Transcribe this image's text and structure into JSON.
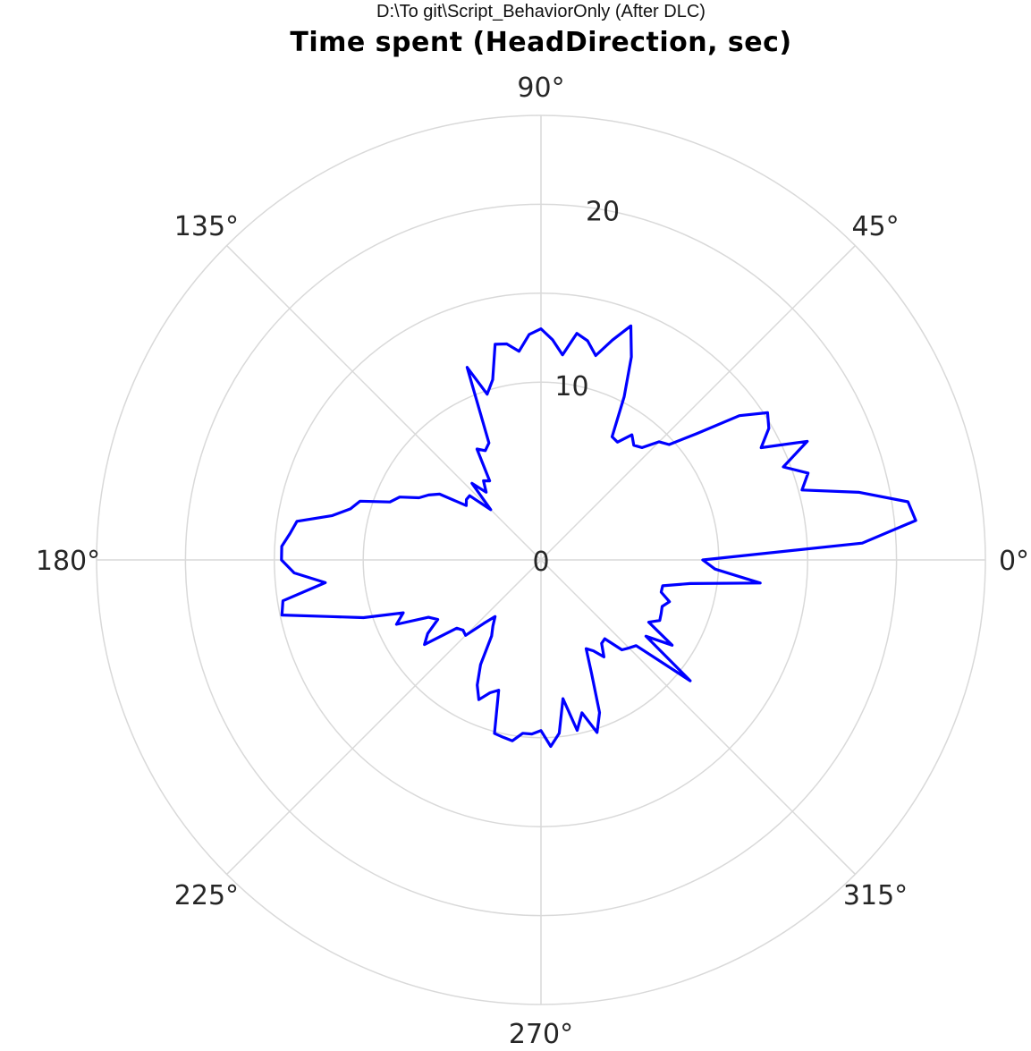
{
  "header": {
    "subtitle": "D:\\To git\\Script_BehaviorOnly (After DLC)",
    "title": "Time spent (HeadDirection, sec)"
  },
  "chart_data": {
    "type": "polar-line",
    "title": "Time spent (HeadDirection, sec)",
    "subtitle": "D:\\To git\\Script_BehaviorOnly (After DLC)",
    "theta_unit": "degrees",
    "theta_ticks": [
      0,
      45,
      90,
      135,
      180,
      225,
      270,
      315
    ],
    "theta_tick_labels": [
      "0°",
      "45°",
      "90°",
      "135°",
      "180°",
      "225°",
      "270°",
      "315°"
    ],
    "r_ticks": [
      0,
      10,
      20
    ],
    "r_tick_labels": [
      "0",
      "10",
      "20"
    ],
    "r_grid_circles": [
      10,
      15,
      20,
      25
    ],
    "rlim": [
      0,
      25
    ],
    "grid": true,
    "colors": {
      "series": "#0000ff",
      "grid": "#d9d9d9",
      "text": "#262626"
    },
    "series": [
      {
        "theta": [
          0,
          3,
          6,
          9,
          12,
          15,
          18,
          21,
          24,
          27,
          30,
          33,
          36,
          39,
          42,
          45,
          48,
          51,
          54,
          57,
          60,
          63,
          66,
          69,
          72,
          75,
          78,
          81,
          84,
          87,
          90,
          93,
          96,
          99,
          102,
          105,
          108,
          111,
          114,
          117,
          120,
          123,
          126,
          129,
          132,
          135,
          138,
          141,
          144,
          147,
          150,
          153,
          156,
          159,
          162,
          165,
          168,
          171,
          174,
          177,
          180,
          183,
          186,
          189,
          192,
          195,
          198,
          201,
          204,
          207,
          210,
          213,
          216,
          219,
          222,
          225,
          228,
          231,
          234,
          237,
          240,
          243,
          246,
          249,
          252,
          255,
          258,
          261,
          264,
          267,
          270,
          273,
          276,
          279,
          282,
          285,
          288,
          291,
          294,
          297,
          300,
          303,
          306,
          309,
          312,
          315,
          318,
          321,
          324,
          327,
          330,
          333,
          336,
          339,
          342,
          345,
          348,
          351,
          354,
          357
        ],
        "r": [
          9.1,
          18.1,
          21.2,
          20.9,
          18.3,
          15.2,
          15.8,
          14.6,
          16.4,
          13.9,
          14.8,
          15.2,
          13.8,
          11.3,
          9.7,
          9.4,
          8.5,
          8.3,
          8.7,
          7.9,
          8.0,
          10.3,
          12.5,
          14.1,
          13.0,
          11.9,
          12.6,
          12.9,
          11.6,
          12.4,
          13.0,
          12.7,
          11.8,
          12.3,
          12.4,
          10.5,
          9.8,
          11.6,
          7.2,
          6.9,
          7.2,
          5.3,
          5.5,
          4.9,
          5.8,
          4.0,
          5.4,
          5.4,
          5.2,
          6.8,
          7.3,
          7.7,
          8.7,
          9.1,
          10.7,
          11.1,
          12.0,
          13.9,
          14.2,
          14.6,
          14.6,
          13.9,
          12.2,
          14.7,
          14.9,
          12.3,
          10.5,
          8.3,
          8.9,
          7.1,
          6.7,
          7.6,
          8.1,
          6.1,
          5.9,
          6.0,
          4.8,
          4.1,
          4.6,
          5.1,
          6.8,
          7.9,
          8.6,
          8.0,
          7.7,
          10.1,
          10.2,
          10.3,
          9.8,
          9.8,
          9.6,
          10.5,
          9.8,
          7.9,
          9.8,
          8.9,
          10.2,
          9.2,
          7.0,
          5.6,
          5.9,
          6.5,
          5.8,
          5.7,
          6.8,
          7.0,
          7.2,
          10.8,
          7.3,
          8.8,
          7.0,
          7.5,
          7.4,
          7.3,
          7.6,
          7.0,
          7.0,
          8.5,
          12.4,
          9.8
        ]
      }
    ]
  }
}
